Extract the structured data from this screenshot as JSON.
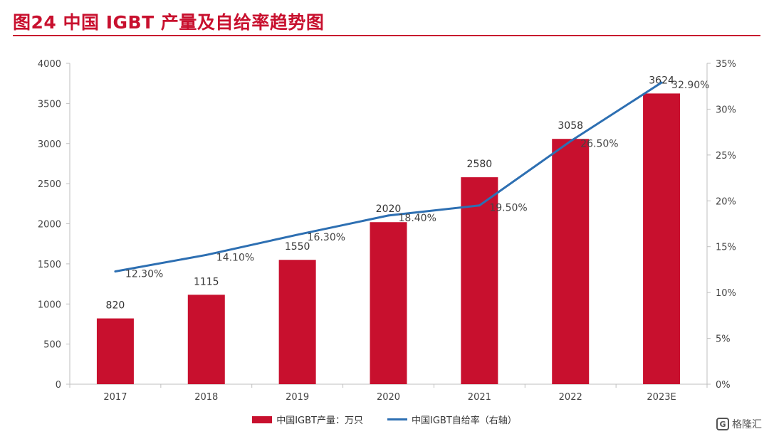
{
  "title": "图24  中国 IGBT 产量及自给率趋势图",
  "colors": {
    "bar": "#c8102e",
    "line": "#2d6fb2",
    "accent": "#c8102e"
  },
  "legend": {
    "bar_label": "中国IGBT产量：万只",
    "line_label": "中国IGBT自给率（右轴）"
  },
  "watermark": {
    "logo": "G",
    "text": "格隆汇"
  },
  "chart_data": {
    "type": "bar",
    "categories": [
      "2017",
      "2018",
      "2019",
      "2020",
      "2021",
      "2022",
      "2023E"
    ],
    "series": [
      {
        "name": "中国IGBT产量：万只",
        "type": "bar",
        "axis": "left",
        "values": [
          820,
          1115,
          1550,
          2020,
          2580,
          3058,
          3624
        ],
        "labels": [
          "820",
          "1115",
          "1550",
          "2020",
          "2580",
          "3058",
          "3624"
        ]
      },
      {
        "name": "中国IGBT自给率（右轴）",
        "type": "line",
        "axis": "right",
        "values": [
          12.3,
          14.1,
          16.3,
          18.4,
          19.5,
          26.5,
          32.9
        ],
        "labels": [
          "12.30%",
          "14.10%",
          "16.30%",
          "18.40%",
          "19.50%",
          "26.50%",
          "32.90%"
        ]
      }
    ],
    "ylim": [
      0,
      4000
    ],
    "yticks": [
      "0",
      "500",
      "1000",
      "1500",
      "2000",
      "2500",
      "3000",
      "3500",
      "4000"
    ],
    "y2lim": [
      0,
      35
    ],
    "y2ticks": [
      "0%",
      "5%",
      "10%",
      "15%",
      "20%",
      "25%",
      "30%",
      "35%"
    ],
    "grid": false,
    "legend_position": "bottom"
  }
}
